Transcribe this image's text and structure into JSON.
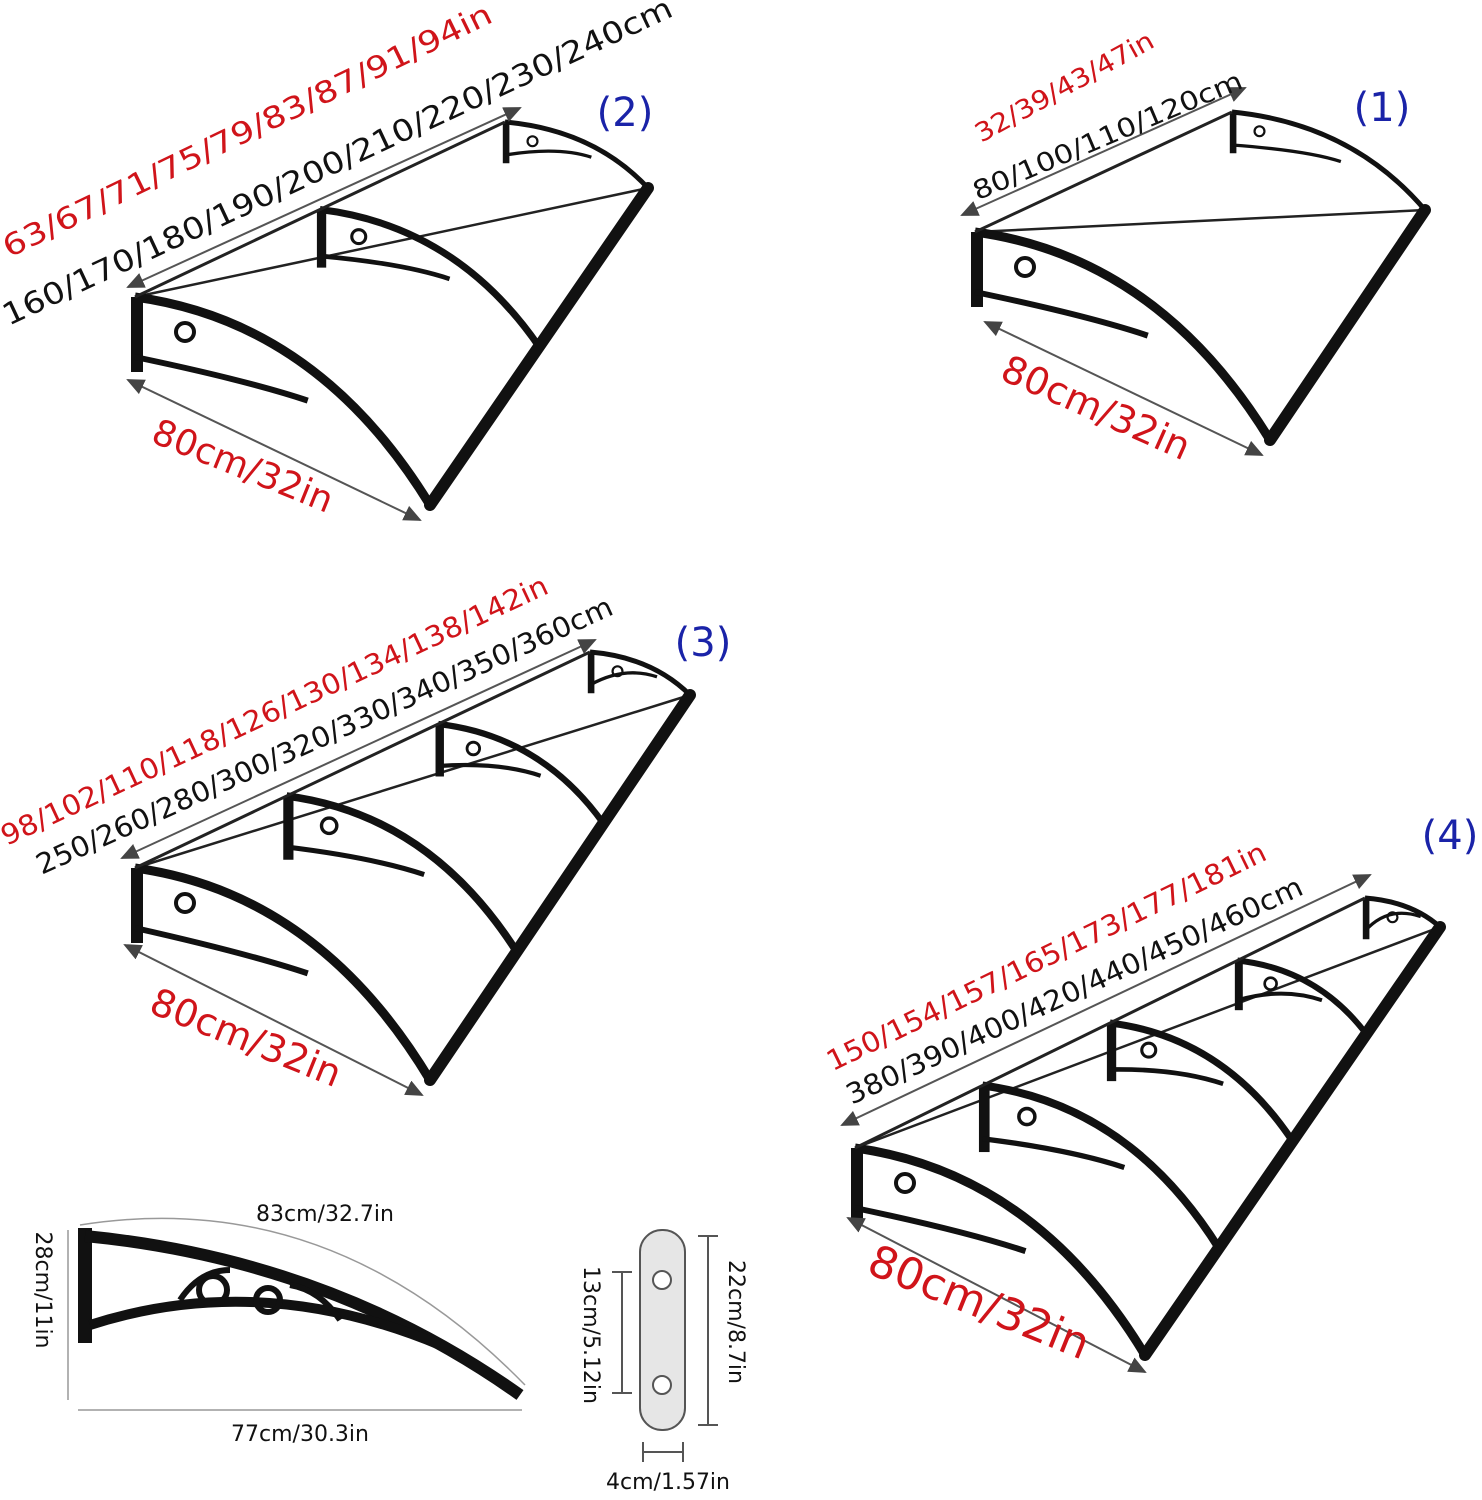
{
  "panels": [
    {
      "label": "(1)",
      "width_in": "32/39/43/47in",
      "width_cm": "80/100/110/120cm",
      "depth": "80cm/32in"
    },
    {
      "label": "(2)",
      "width_in": "63/67/71/75/79/83/87/91/94in",
      "width_cm": "160/170/180/190/200/210/220/230/240cm",
      "depth": "80cm/32in"
    },
    {
      "label": "(3)",
      "width_in": "98/102/110/118/126/130/134/138/142in",
      "width_cm": "250/260/280/300/320/330/340/350/360cm",
      "depth": "80cm/32in"
    },
    {
      "label": "(4)",
      "width_in": "150/154/157/165/173/177/181in",
      "width_cm": "380/390/400/420/440/450/460cm",
      "depth": "80cm/32in"
    }
  ],
  "bracket": {
    "arc": "83cm/32.7in",
    "height": "28cm/11in",
    "base": "77cm/30.3in"
  },
  "plate": {
    "hole_spacing": "13cm/5.12in",
    "length": "22cm/8.7in",
    "width": "4cm/1.57in"
  }
}
